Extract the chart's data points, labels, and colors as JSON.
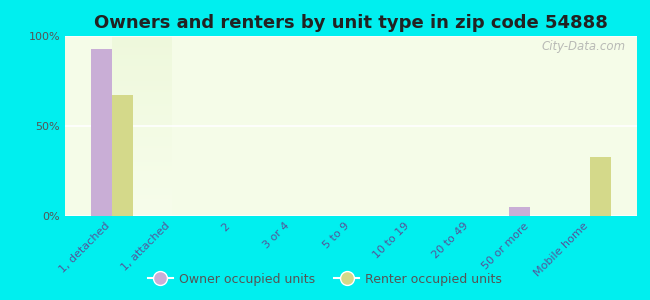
{
  "title": "Owners and renters by unit type in zip code 54888",
  "categories": [
    "1, detached",
    "1, attached",
    "2",
    "3 or 4",
    "5 to 9",
    "10 to 19",
    "20 to 49",
    "50 or more",
    "Mobile home"
  ],
  "owner_values": [
    93,
    0,
    0,
    0,
    0,
    0,
    0,
    5,
    0
  ],
  "renter_values": [
    67,
    0,
    0,
    0,
    0,
    0,
    0,
    0,
    33
  ],
  "owner_color": "#c9aed6",
  "renter_color": "#d4d98a",
  "background_color": "#00efef",
  "plot_bg_gradient_top": "#e8f5d0",
  "plot_bg_gradient_bottom": "#f5fce8",
  "ylim": [
    0,
    100
  ],
  "yticks": [
    0,
    50,
    100
  ],
  "ytick_labels": [
    "0%",
    "50%",
    "100%"
  ],
  "bar_width": 0.35,
  "legend_owner": "Owner occupied units",
  "legend_renter": "Renter occupied units",
  "watermark": "City-Data.com",
  "title_fontsize": 13,
  "tick_fontsize": 8,
  "legend_fontsize": 9
}
